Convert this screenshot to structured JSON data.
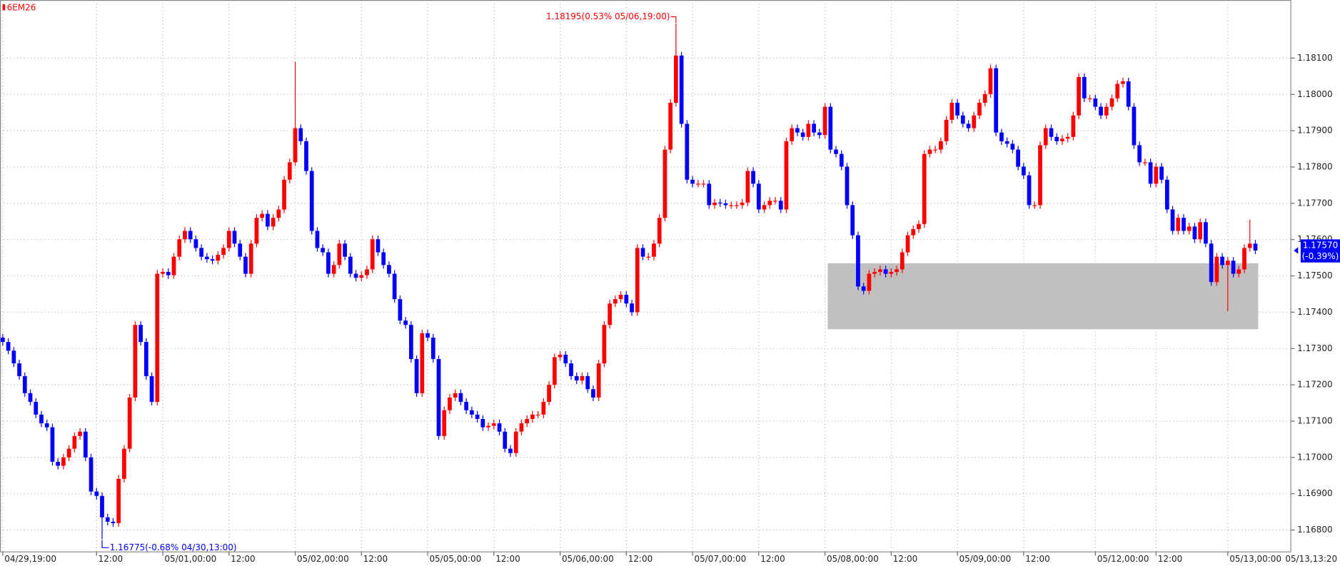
{
  "chart_data": {
    "type": "candlestick",
    "symbol": "6EM26",
    "up_color": "#ff0000",
    "down_color": "#0000ff",
    "grid": true,
    "ylim": [
      1.16741,
      1.1826
    ],
    "yticks": [
      {
        "value": 1.168,
        "label": "1.16800"
      },
      {
        "value": 1.169,
        "label": "1.16900"
      },
      {
        "value": 1.17,
        "label": "1.17000"
      },
      {
        "value": 1.171,
        "label": "1.17100"
      },
      {
        "value": 1.172,
        "label": "1.17200"
      },
      {
        "value": 1.173,
        "label": "1.17300"
      },
      {
        "value": 1.174,
        "label": "1.17400"
      },
      {
        "value": 1.175,
        "label": "1.17500"
      },
      {
        "value": 1.176,
        "label": "1.17600"
      },
      {
        "value": 1.177,
        "label": "1.17700"
      },
      {
        "value": 1.178,
        "label": "1.17800"
      },
      {
        "value": 1.179,
        "label": "1.17900"
      },
      {
        "value": 1.18,
        "label": "1.18000"
      },
      {
        "value": 1.181,
        "label": "1.18100"
      }
    ],
    "categories": [
      "04/29,19:00",
      null,
      null,
      null,
      null,
      null,
      null,
      null,
      null,
      null,
      null,
      null,
      null,
      null,
      null,
      null,
      null,
      "12:00",
      null,
      null,
      null,
      null,
      null,
      null,
      null,
      null,
      null,
      null,
      null,
      "05/01,00:00",
      null,
      null,
      null,
      null,
      null,
      null,
      null,
      null,
      null,
      null,
      null,
      "12:00",
      null,
      null,
      null,
      null,
      null,
      null,
      null,
      null,
      null,
      null,
      null,
      "05/02,00:00",
      null,
      null,
      null,
      null,
      null,
      null,
      null,
      null,
      null,
      null,
      null,
      "12:00",
      null,
      null,
      null,
      null,
      null,
      null,
      null,
      null,
      null,
      null,
      null,
      "05/05,00:00",
      null,
      null,
      null,
      null,
      null,
      null,
      null,
      null,
      null,
      null,
      null,
      "12:00",
      null,
      null,
      null,
      null,
      null,
      null,
      null,
      null,
      null,
      null,
      null,
      "05/06,00:00",
      null,
      null,
      null,
      null,
      null,
      null,
      null,
      null,
      null,
      null,
      null,
      "12:00",
      null,
      null,
      null,
      null,
      null,
      null,
      null,
      null,
      null,
      null,
      null,
      "05/07,00:00",
      null,
      null,
      null,
      null,
      null,
      null,
      null,
      null,
      null,
      null,
      null,
      "12:00",
      null,
      null,
      null,
      null,
      null,
      null,
      null,
      null,
      null,
      null,
      null,
      "05/08,00:00",
      null,
      null,
      null,
      null,
      null,
      null,
      null,
      null,
      null,
      null,
      null,
      "12:00",
      null,
      null,
      null,
      null,
      null,
      null,
      null,
      null,
      null,
      null,
      null,
      "05/09,00:00",
      null,
      null,
      null,
      null,
      null,
      null,
      null,
      null,
      null,
      null,
      null,
      "12:00",
      null,
      null,
      null,
      null,
      null,
      null,
      null,
      null,
      null,
      null,
      null,
      null,
      "05/12,00:00",
      null,
      null,
      null,
      null,
      null,
      null,
      null,
      null,
      null,
      null,
      "12:00",
      null,
      null,
      null,
      null,
      null,
      null,
      null,
      null,
      null,
      null,
      null,
      null,
      "05/13,00:00",
      null,
      null,
      null,
      null,
      null
    ],
    "x_end_label": "05/13,13:20",
    "open": [
      1.1733,
      1.17318,
      1.17294,
      1.17259,
      1.17224,
      1.17177,
      1.17153,
      1.17118,
      1.17094,
      1.17083,
      1.16988,
      1.16977,
      1.17,
      1.17024,
      1.17059,
      1.17071,
      1.17,
      1.16906,
      1.16894,
      1.16835,
      1.16823,
      1.16819,
      1.16941,
      1.17024,
      1.17165,
      1.17365,
      1.17318,
      1.17224,
      1.17153,
      1.17506,
      1.17511,
      1.17502,
      1.17553,
      1.17601,
      1.17624,
      1.17601,
      1.17577,
      1.17553,
      1.17546,
      1.17542,
      1.17558,
      1.17577,
      1.17624,
      1.17589,
      1.17553,
      1.17506,
      1.17589,
      1.1766,
      1.17671,
      1.17636,
      1.1766,
      1.17683,
      1.17765,
      1.17813,
      1.17907,
      1.17871,
      1.17789,
      1.17624,
      1.17577,
      1.17565,
      1.17506,
      1.1753,
      1.17589,
      1.17553,
      1.17506,
      1.17495,
      1.17502,
      1.17518,
      1.17601,
      1.17565,
      1.1753,
      1.17506,
      1.17436,
      1.17377,
      1.17365,
      1.17271,
      1.17177,
      1.17342,
      1.1733,
      1.17271,
      1.17059,
      1.1713,
      1.17165,
      1.17177,
      1.17153,
      1.1713,
      1.17118,
      1.17106,
      1.17083,
      1.17087,
      1.17094,
      1.17071,
      1.17024,
      1.17012,
      1.17071,
      1.17094,
      1.17106,
      1.17118,
      1.17118,
      1.17153,
      1.172,
      1.17276,
      1.17283,
      1.17259,
      1.17224,
      1.17212,
      1.17224,
      1.17188,
      1.17165,
      1.17259,
      1.17365,
      1.17424,
      1.17436,
      1.17448,
      1.17424,
      1.174,
      1.17577,
      1.17553,
      1.17553,
      1.17589,
      1.1766,
      1.17848,
      1.17977,
      1.18107,
      1.17919,
      1.17765,
      1.17754,
      1.17754,
      1.17754,
      1.17695,
      1.17702,
      1.177,
      1.17695,
      1.17695,
      1.17695,
      1.17702,
      1.17789,
      1.17754,
      1.17683,
      1.17695,
      1.17707,
      1.17707,
      1.17683,
      1.17871,
      1.17907,
      1.17895,
      1.17883,
      1.17919,
      1.17895,
      1.17888,
      1.17966,
      1.17848,
      1.17836,
      1.17801,
      1.17695,
      1.17612,
      1.17471,
      1.17459,
      1.17506,
      1.17511,
      1.17518,
      1.17506,
      1.17511,
      1.17518,
      1.17565,
      1.17612,
      1.17629,
      1.17643,
      1.17836,
      1.17848,
      1.17848,
      1.17871,
      1.1793,
      1.17977,
      1.17942,
      1.17919,
      1.17907,
      1.17942,
      1.17977,
      1.18001,
      1.18072,
      1.17895,
      1.17871,
      1.17864,
      1.17848,
      1.17801,
      1.17777,
      1.17695,
      1.17695,
      1.1786,
      1.17907,
      1.17883,
      1.17871,
      1.17878,
      1.17883,
      1.17942,
      1.18048,
      1.17989,
      1.17989,
      1.17966,
      1.17942,
      1.17966,
      1.17989,
      1.18029,
      1.18036,
      1.17966,
      1.1786,
      1.17813,
      1.17813,
      1.17754,
      1.17801,
      1.17765,
      1.17683,
      1.17624,
      1.1766,
      1.17624,
      1.17636,
      1.17601,
      1.17648,
      1.17589,
      1.17483,
      1.17553,
      1.1753,
      1.17542,
      1.17506,
      1.17518,
      1.17577,
      1.17589
    ],
    "high": [
      1.1734,
      1.17328,
      1.17304,
      1.17269,
      1.17234,
      1.17187,
      1.17163,
      1.17128,
      1.17104,
      1.17093,
      1.16998,
      1.1701,
      1.17034,
      1.17069,
      1.17081,
      1.17081,
      1.1701,
      1.16916,
      1.16904,
      1.16845,
      1.16833,
      1.16951,
      1.17034,
      1.17175,
      1.17375,
      1.17375,
      1.17328,
      1.17234,
      1.17516,
      1.17521,
      1.17521,
      1.17563,
      1.17611,
      1.17634,
      1.17634,
      1.17611,
      1.17587,
      1.17563,
      1.17556,
      1.17568,
      1.17587,
      1.17634,
      1.17634,
      1.17599,
      1.17563,
      1.17599,
      1.1767,
      1.17681,
      1.17681,
      1.1767,
      1.17693,
      1.17775,
      1.17823,
      1.1809,
      1.17917,
      1.17881,
      1.17799,
      1.17634,
      1.17587,
      1.17575,
      1.1754,
      1.17599,
      1.17599,
      1.17563,
      1.17516,
      1.17512,
      1.17528,
      1.17611,
      1.17611,
      1.17575,
      1.1754,
      1.17516,
      1.17446,
      1.17387,
      1.17375,
      1.17281,
      1.17352,
      1.17352,
      1.1734,
      1.17281,
      1.1714,
      1.17175,
      1.17187,
      1.17187,
      1.17163,
      1.1714,
      1.17128,
      1.17116,
      1.17097,
      1.17104,
      1.17104,
      1.17081,
      1.17034,
      1.17081,
      1.17104,
      1.17116,
      1.17128,
      1.17128,
      1.17163,
      1.1721,
      1.17286,
      1.17293,
      1.17293,
      1.17269,
      1.17234,
      1.17234,
      1.17234,
      1.17198,
      1.17269,
      1.17375,
      1.17434,
      1.17446,
      1.17458,
      1.17458,
      1.17434,
      1.17587,
      1.17587,
      1.17563,
      1.17599,
      1.1767,
      1.17858,
      1.17987,
      1.18195,
      1.18117,
      1.17929,
      1.17775,
      1.17764,
      1.17764,
      1.17764,
      1.17712,
      1.17712,
      1.1771,
      1.17705,
      1.17705,
      1.17712,
      1.17799,
      1.17799,
      1.17764,
      1.17705,
      1.17717,
      1.17717,
      1.17717,
      1.17881,
      1.17917,
      1.17917,
      1.17905,
      1.17929,
      1.17929,
      1.17905,
      1.17976,
      1.17976,
      1.17858,
      1.17846,
      1.17811,
      1.17705,
      1.17622,
      1.17481,
      1.17516,
      1.17521,
      1.17528,
      1.17528,
      1.17521,
      1.17528,
      1.17575,
      1.17622,
      1.17639,
      1.17653,
      1.17846,
      1.17858,
      1.17858,
      1.17881,
      1.1794,
      1.17987,
      1.17987,
      1.17952,
      1.17929,
      1.17952,
      1.17987,
      1.18011,
      1.18082,
      1.18082,
      1.17905,
      1.17881,
      1.17874,
      1.17858,
      1.17811,
      1.17787,
      1.17705,
      1.1787,
      1.17917,
      1.17917,
      1.17893,
      1.17888,
      1.17893,
      1.17952,
      1.18058,
      1.18058,
      1.17999,
      1.17999,
      1.17976,
      1.17976,
      1.17999,
      1.18039,
      1.18046,
      1.18046,
      1.17976,
      1.1787,
      1.17823,
      1.17823,
      1.17811,
      1.17811,
      1.17775,
      1.17693,
      1.1767,
      1.1767,
      1.17646,
      1.17646,
      1.17658,
      1.17658,
      1.17599,
      1.17563,
      1.17563,
      1.17552,
      1.17552,
      1.17528,
      1.17587,
      1.17655,
      1.17599
    ],
    "low": [
      1.17308,
      1.17284,
      1.17249,
      1.17214,
      1.17167,
      1.17143,
      1.17108,
      1.17084,
      1.17073,
      1.16978,
      1.16967,
      1.16967,
      1.1699,
      1.17014,
      1.17049,
      1.1699,
      1.16896,
      1.16884,
      1.16775,
      1.16813,
      1.16809,
      1.16809,
      1.16931,
      1.17014,
      1.17155,
      1.17308,
      1.17214,
      1.17143,
      1.17143,
      1.17496,
      1.17492,
      1.17492,
      1.17543,
      1.17591,
      1.17591,
      1.17567,
      1.17543,
      1.17536,
      1.17532,
      1.17532,
      1.17548,
      1.17567,
      1.17579,
      1.17543,
      1.17496,
      1.17496,
      1.17579,
      1.1765,
      1.17626,
      1.17626,
      1.1765,
      1.17673,
      1.17755,
      1.17803,
      1.17861,
      1.17779,
      1.17614,
      1.17567,
      1.17555,
      1.17496,
      1.17496,
      1.1752,
      1.17543,
      1.17496,
      1.17485,
      1.17485,
      1.17492,
      1.17508,
      1.17555,
      1.1752,
      1.17496,
      1.17426,
      1.17367,
      1.17355,
      1.17261,
      1.17167,
      1.17167,
      1.1732,
      1.17261,
      1.17049,
      1.17049,
      1.1712,
      1.17155,
      1.17143,
      1.1712,
      1.17108,
      1.17096,
      1.17073,
      1.17073,
      1.17077,
      1.17061,
      1.17014,
      1.17002,
      1.17002,
      1.17061,
      1.17084,
      1.17096,
      1.17108,
      1.17108,
      1.17143,
      1.1719,
      1.17266,
      1.17249,
      1.17214,
      1.17202,
      1.17202,
      1.17178,
      1.17155,
      1.17155,
      1.17249,
      1.17355,
      1.17414,
      1.17426,
      1.17414,
      1.1739,
      1.1739,
      1.17543,
      1.17543,
      1.17543,
      1.17579,
      1.1765,
      1.17838,
      1.17967,
      1.17909,
      1.17755,
      1.17744,
      1.17744,
      1.17744,
      1.17685,
      1.17685,
      1.1769,
      1.17685,
      1.17685,
      1.17685,
      1.17685,
      1.17692,
      1.17744,
      1.17673,
      1.17673,
      1.17685,
      1.17697,
      1.17673,
      1.17673,
      1.17861,
      1.17885,
      1.17873,
      1.17873,
      1.17885,
      1.17878,
      1.17878,
      1.17838,
      1.17826,
      1.17791,
      1.17685,
      1.17602,
      1.17461,
      1.17449,
      1.17449,
      1.17496,
      1.17501,
      1.17496,
      1.17496,
      1.17501,
      1.17508,
      1.17555,
      1.17602,
      1.17619,
      1.17633,
      1.17826,
      1.17838,
      1.17838,
      1.17861,
      1.1792,
      1.17932,
      1.17909,
      1.17897,
      1.17897,
      1.17932,
      1.17967,
      1.17991,
      1.17885,
      1.17861,
      1.17854,
      1.17838,
      1.17791,
      1.17767,
      1.17685,
      1.17685,
      1.17685,
      1.1785,
      1.17873,
      1.17861,
      1.17861,
      1.17868,
      1.17873,
      1.17932,
      1.17979,
      1.17979,
      1.17956,
      1.17932,
      1.17932,
      1.17956,
      1.17979,
      1.18019,
      1.17956,
      1.1785,
      1.17803,
      1.17803,
      1.17744,
      1.17744,
      1.17755,
      1.17673,
      1.17614,
      1.17614,
      1.17614,
      1.17614,
      1.17591,
      1.17591,
      1.17579,
      1.17473,
      1.17473,
      1.1752,
      1.17403,
      1.17496,
      1.17496,
      1.17508,
      1.17567,
      1.1756
    ],
    "close": [
      1.17318,
      1.17294,
      1.17259,
      1.17224,
      1.17177,
      1.17153,
      1.17118,
      1.17094,
      1.17083,
      1.16988,
      1.16977,
      1.17,
      1.17024,
      1.17059,
      1.17071,
      1.17,
      1.16906,
      1.16894,
      1.16835,
      1.16823,
      1.16819,
      1.16941,
      1.17024,
      1.17165,
      1.17365,
      1.17318,
      1.17224,
      1.17153,
      1.17506,
      1.17511,
      1.17502,
      1.17553,
      1.17601,
      1.17624,
      1.17601,
      1.17577,
      1.17553,
      1.17546,
      1.17542,
      1.17558,
      1.17577,
      1.17624,
      1.17589,
      1.17553,
      1.17506,
      1.17589,
      1.1766,
      1.17671,
      1.17636,
      1.1766,
      1.17683,
      1.17765,
      1.17813,
      1.17907,
      1.17871,
      1.17789,
      1.17624,
      1.17577,
      1.17565,
      1.17506,
      1.1753,
      1.17589,
      1.17553,
      1.17506,
      1.17495,
      1.17502,
      1.17518,
      1.17601,
      1.17565,
      1.1753,
      1.17506,
      1.17436,
      1.17377,
      1.17365,
      1.17271,
      1.17177,
      1.17342,
      1.1733,
      1.17271,
      1.17059,
      1.1713,
      1.17165,
      1.17177,
      1.17153,
      1.1713,
      1.17118,
      1.17106,
      1.17083,
      1.17087,
      1.17094,
      1.17071,
      1.17024,
      1.17012,
      1.17071,
      1.17094,
      1.17106,
      1.17118,
      1.17118,
      1.17153,
      1.172,
      1.17276,
      1.17283,
      1.17259,
      1.17224,
      1.17212,
      1.17224,
      1.17188,
      1.17165,
      1.17259,
      1.17365,
      1.17424,
      1.17436,
      1.17448,
      1.17424,
      1.174,
      1.17577,
      1.17553,
      1.17553,
      1.17589,
      1.1766,
      1.17848,
      1.17977,
      1.18107,
      1.17919,
      1.17765,
      1.17754,
      1.17754,
      1.17754,
      1.17695,
      1.17702,
      1.177,
      1.17695,
      1.17695,
      1.17695,
      1.17702,
      1.17789,
      1.17754,
      1.17683,
      1.17695,
      1.17707,
      1.17707,
      1.17683,
      1.17871,
      1.17907,
      1.17895,
      1.17883,
      1.17919,
      1.17895,
      1.17888,
      1.17966,
      1.17848,
      1.17836,
      1.17801,
      1.17695,
      1.17612,
      1.17471,
      1.17459,
      1.17506,
      1.17511,
      1.17518,
      1.17506,
      1.17511,
      1.17518,
      1.17565,
      1.17612,
      1.17629,
      1.17643,
      1.17836,
      1.17848,
      1.17848,
      1.17871,
      1.1793,
      1.17977,
      1.17942,
      1.17919,
      1.17907,
      1.17942,
      1.17977,
      1.18001,
      1.18072,
      1.17895,
      1.17871,
      1.17864,
      1.17848,
      1.17801,
      1.17777,
      1.17695,
      1.17695,
      1.1786,
      1.17907,
      1.17883,
      1.17871,
      1.17878,
      1.17883,
      1.17942,
      1.18048,
      1.17989,
      1.17989,
      1.17966,
      1.17942,
      1.17966,
      1.17989,
      1.18029,
      1.18036,
      1.17966,
      1.1786,
      1.17813,
      1.17813,
      1.17754,
      1.17801,
      1.17765,
      1.17683,
      1.17624,
      1.1766,
      1.17624,
      1.17636,
      1.17601,
      1.17648,
      1.17589,
      1.17483,
      1.17553,
      1.1753,
      1.17542,
      1.17506,
      1.17518,
      1.17577,
      1.17589,
      1.1757
    ],
    "high_label": "1.18195(0.53% 05/06,19:00)",
    "high_label_color": "#ff0000",
    "low_label": "1.16775(-0.68% 04/30,13:00)",
    "low_label_color": "#0000ff",
    "last_label": "1.17570",
    "last_change": "(-0.39%)",
    "last_color": "#0000ff",
    "zone": {
      "from": 150,
      "to": 227,
      "low": 1.17353,
      "high": 1.17535,
      "color": "#c0c0c0"
    }
  }
}
